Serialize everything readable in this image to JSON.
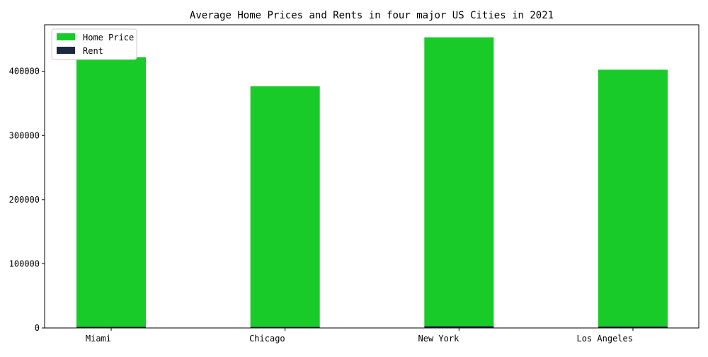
{
  "chart_data": {
    "type": "bar",
    "stacked": true,
    "title": "Average Home Prices and Rents in four major US Cities in 2021",
    "xlabel": "",
    "ylabel": "",
    "categories": [
      "Miami",
      "Chicago",
      "New York",
      "Los Angeles"
    ],
    "series": [
      {
        "name": "Rent",
        "values": [
          2000,
          1800,
          3000,
          2500
        ],
        "color": "#1c2841"
      },
      {
        "name": "Home Price",
        "values": [
          420000,
          375000,
          450000,
          400000
        ],
        "color": "#18cb28"
      }
    ],
    "legend_order": [
      "Home Price",
      "Rent"
    ],
    "ylim": [
      0,
      472500
    ],
    "yticks": [
      0,
      100000,
      200000,
      300000,
      400000
    ],
    "ytick_labels": [
      "0",
      "100000",
      "200000",
      "300000",
      "400000"
    ],
    "grid": false,
    "legend_position": "top-left"
  }
}
